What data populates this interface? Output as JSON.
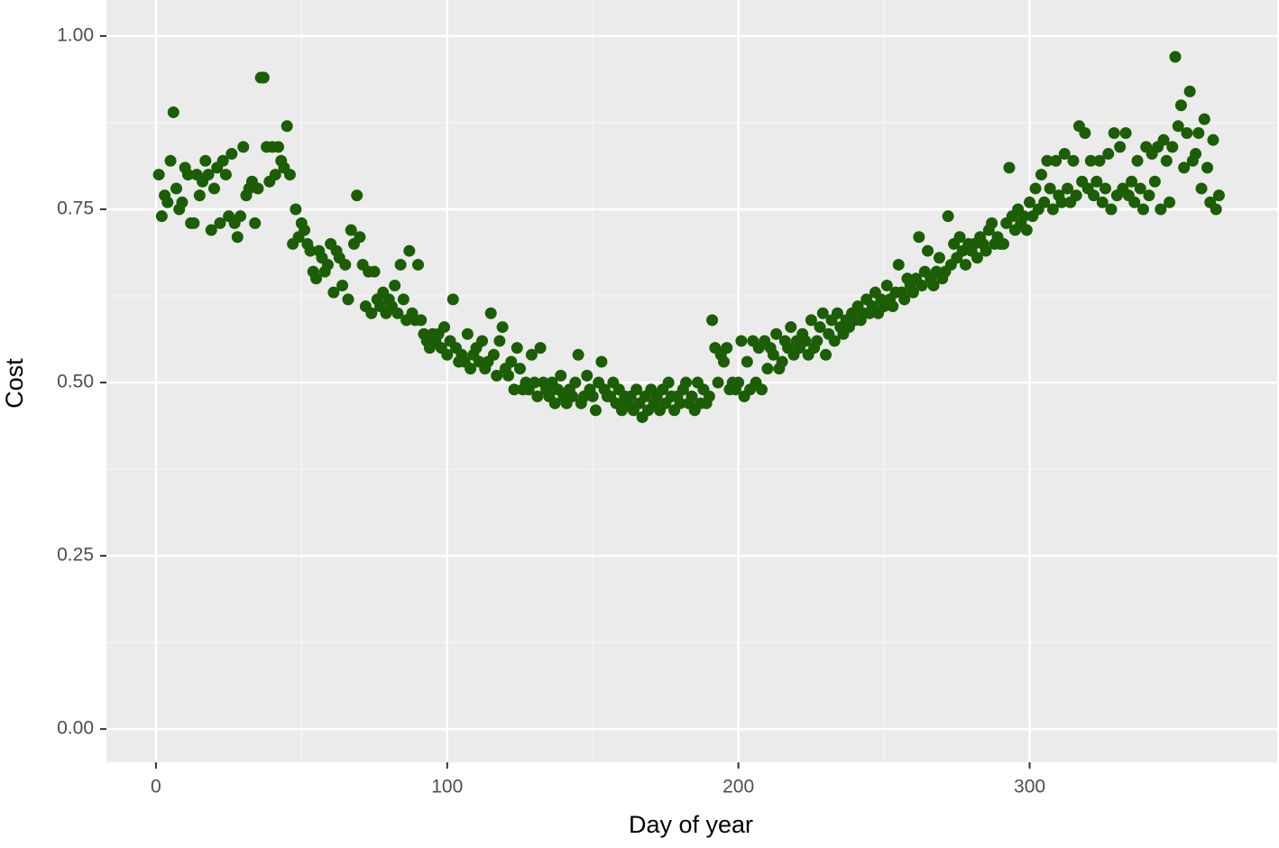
{
  "chart_data": {
    "type": "scatter",
    "x_label": "Day of year",
    "y_label": "Cost",
    "xlim": [
      -17,
      385
    ],
    "ylim": [
      -0.048,
      1.052
    ],
    "xticks": [
      0,
      100,
      200,
      300
    ],
    "yticks": [
      {
        "value": 0,
        "label": "0.00"
      },
      {
        "value": 0.25,
        "label": "0.25"
      },
      {
        "value": 0.5,
        "label": "0.50"
      },
      {
        "value": 0.75,
        "label": "0.75"
      },
      {
        "value": 1,
        "label": "1.00"
      }
    ],
    "grid": true,
    "minor_grid": true,
    "series": [
      {
        "color": "#1b5e05",
        "x": [
          1,
          2,
          3,
          4,
          5,
          6,
          7,
          8,
          9,
          10,
          11,
          12,
          13,
          14,
          15,
          16,
          17,
          18,
          19,
          20,
          21,
          22,
          23,
          24,
          25,
          26,
          27,
          28,
          29,
          30,
          31,
          32,
          33,
          34,
          35,
          36,
          37,
          38,
          39,
          40,
          41,
          42,
          43,
          44,
          45,
          46,
          47,
          48,
          49,
          50,
          51,
          52,
          53,
          54,
          55,
          56,
          57,
          58,
          59,
          60,
          61,
          62,
          63,
          64,
          65,
          66,
          67,
          68,
          69,
          70,
          71,
          72,
          73,
          74,
          75,
          76,
          77,
          78,
          79,
          80,
          81,
          82,
          83,
          84,
          85,
          86,
          87,
          88,
          89,
          90,
          91,
          92,
          93,
          94,
          95,
          96,
          97,
          98,
          99,
          100,
          101,
          102,
          103,
          104,
          105,
          106,
          107,
          108,
          109,
          110,
          111,
          112,
          113,
          114,
          115,
          116,
          117,
          118,
          119,
          120,
          121,
          122,
          123,
          124,
          125,
          126,
          127,
          128,
          129,
          130,
          131,
          132,
          133,
          134,
          135,
          136,
          137,
          138,
          139,
          140,
          141,
          142,
          143,
          144,
          145,
          146,
          147,
          148,
          149,
          150,
          151,
          152,
          153,
          154,
          155,
          156,
          157,
          158,
          159,
          160,
          161,
          162,
          163,
          164,
          165,
          166,
          167,
          168,
          169,
          170,
          171,
          172,
          173,
          174,
          175,
          176,
          177,
          178,
          179,
          180,
          181,
          182,
          183,
          184,
          185,
          186,
          187,
          188,
          189,
          190,
          191,
          192,
          193,
          194,
          195,
          196,
          197,
          198,
          199,
          200,
          201,
          202,
          203,
          204,
          205,
          206,
          207,
          208,
          209,
          210,
          211,
          212,
          213,
          214,
          215,
          216,
          217,
          218,
          219,
          220,
          221,
          222,
          223,
          224,
          225,
          226,
          227,
          228,
          229,
          230,
          231,
          232,
          233,
          234,
          235,
          236,
          237,
          238,
          239,
          240,
          241,
          242,
          243,
          244,
          245,
          246,
          247,
          248,
          249,
          250,
          251,
          252,
          253,
          254,
          255,
          256,
          257,
          258,
          259,
          260,
          261,
          262,
          263,
          264,
          265,
          266,
          267,
          268,
          269,
          270,
          271,
          272,
          273,
          274,
          275,
          276,
          277,
          278,
          279,
          280,
          281,
          282,
          283,
          284,
          285,
          286,
          287,
          288,
          289,
          290,
          291,
          292,
          293,
          294,
          295,
          296,
          297,
          298,
          299,
          300,
          301,
          302,
          303,
          304,
          305,
          306,
          307,
          308,
          309,
          310,
          311,
          312,
          313,
          314,
          315,
          316,
          317,
          318,
          319,
          320,
          321,
          322,
          323,
          324,
          325,
          326,
          327,
          328,
          329,
          330,
          331,
          332,
          333,
          334,
          335,
          336,
          337,
          338,
          339,
          340,
          341,
          342,
          343,
          344,
          345,
          346,
          347,
          348,
          349,
          350,
          351,
          352,
          353,
          354,
          355,
          356,
          357,
          358,
          359,
          360,
          361,
          362,
          363,
          364,
          365
        ],
        "values": [
          0.8,
          0.74,
          0.77,
          0.76,
          0.82,
          0.89,
          0.78,
          0.75,
          0.76,
          0.81,
          0.8,
          0.73,
          0.73,
          0.8,
          0.77,
          0.79,
          0.82,
          0.8,
          0.72,
          0.78,
          0.81,
          0.73,
          0.82,
          0.8,
          0.74,
          0.83,
          0.73,
          0.71,
          0.74,
          0.84,
          0.77,
          0.78,
          0.79,
          0.73,
          0.78,
          0.94,
          0.94,
          0.84,
          0.79,
          0.84,
          0.8,
          0.84,
          0.82,
          0.81,
          0.87,
          0.8,
          0.7,
          0.75,
          0.71,
          0.73,
          0.72,
          0.7,
          0.69,
          0.66,
          0.65,
          0.69,
          0.68,
          0.66,
          0.67,
          0.7,
          0.63,
          0.69,
          0.68,
          0.64,
          0.67,
          0.62,
          0.72,
          0.7,
          0.77,
          0.71,
          0.67,
          0.61,
          0.66,
          0.6,
          0.66,
          0.62,
          0.61,
          0.63,
          0.6,
          0.62,
          0.61,
          0.64,
          0.6,
          0.67,
          0.62,
          0.59,
          0.69,
          0.6,
          0.59,
          0.67,
          0.59,
          0.57,
          0.56,
          0.55,
          0.57,
          0.56,
          0.57,
          0.55,
          0.58,
          0.54,
          0.56,
          0.62,
          0.55,
          0.53,
          0.54,
          0.53,
          0.57,
          0.52,
          0.54,
          0.55,
          0.53,
          0.56,
          0.52,
          0.53,
          0.6,
          0.54,
          0.51,
          0.56,
          0.58,
          0.52,
          0.51,
          0.53,
          0.49,
          0.55,
          0.52,
          0.49,
          0.5,
          0.49,
          0.54,
          0.5,
          0.48,
          0.55,
          0.5,
          0.49,
          0.48,
          0.5,
          0.47,
          0.49,
          0.51,
          0.48,
          0.47,
          0.49,
          0.48,
          0.5,
          0.54,
          0.47,
          0.48,
          0.51,
          0.49,
          0.48,
          0.46,
          0.5,
          0.53,
          0.49,
          0.48,
          0.48,
          0.5,
          0.47,
          0.49,
          0.46,
          0.48,
          0.47,
          0.48,
          0.46,
          0.49,
          0.47,
          0.45,
          0.48,
          0.46,
          0.49,
          0.47,
          0.48,
          0.46,
          0.49,
          0.47,
          0.5,
          0.48,
          0.46,
          0.48,
          0.47,
          0.49,
          0.5,
          0.47,
          0.48,
          0.46,
          0.5,
          0.47,
          0.49,
          0.47,
          0.48,
          0.59,
          0.55,
          0.5,
          0.54,
          0.53,
          0.55,
          0.49,
          0.5,
          0.49,
          0.5,
          0.56,
          0.48,
          0.53,
          0.49,
          0.56,
          0.5,
          0.55,
          0.49,
          0.56,
          0.52,
          0.55,
          0.54,
          0.57,
          0.52,
          0.53,
          0.56,
          0.55,
          0.58,
          0.54,
          0.56,
          0.55,
          0.57,
          0.56,
          0.54,
          0.59,
          0.55,
          0.56,
          0.58,
          0.6,
          0.54,
          0.57,
          0.59,
          0.56,
          0.6,
          0.58,
          0.57,
          0.59,
          0.58,
          0.6,
          0.59,
          0.61,
          0.59,
          0.6,
          0.62,
          0.6,
          0.61,
          0.63,
          0.6,
          0.62,
          0.61,
          0.64,
          0.62,
          0.61,
          0.63,
          0.67,
          0.63,
          0.62,
          0.65,
          0.64,
          0.63,
          0.65,
          0.71,
          0.64,
          0.66,
          0.69,
          0.65,
          0.64,
          0.66,
          0.68,
          0.65,
          0.66,
          0.74,
          0.67,
          0.7,
          0.68,
          0.71,
          0.69,
          0.67,
          0.7,
          0.69,
          0.7,
          0.68,
          0.71,
          0.7,
          0.69,
          0.72,
          0.73,
          0.7,
          0.71,
          0.7,
          0.7,
          0.73,
          0.81,
          0.74,
          0.72,
          0.75,
          0.73,
          0.74,
          0.72,
          0.76,
          0.74,
          0.78,
          0.75,
          0.8,
          0.76,
          0.82,
          0.78,
          0.75,
          0.82,
          0.77,
          0.76,
          0.83,
          0.78,
          0.76,
          0.82,
          0.77,
          0.87,
          0.79,
          0.86,
          0.78,
          0.82,
          0.77,
          0.79,
          0.82,
          0.76,
          0.78,
          0.83,
          0.75,
          0.86,
          0.77,
          0.84,
          0.78,
          0.86,
          0.77,
          0.79,
          0.76,
          0.82,
          0.78,
          0.75,
          0.84,
          0.77,
          0.83,
          0.79,
          0.84,
          0.75,
          0.85,
          0.82,
          0.76,
          0.84,
          0.97,
          0.87,
          0.9,
          0.81,
          0.86,
          0.92,
          0.82,
          0.83,
          0.86,
          0.78,
          0.88,
          0.81,
          0.76,
          0.85,
          0.75,
          0.77
        ]
      }
    ]
  }
}
